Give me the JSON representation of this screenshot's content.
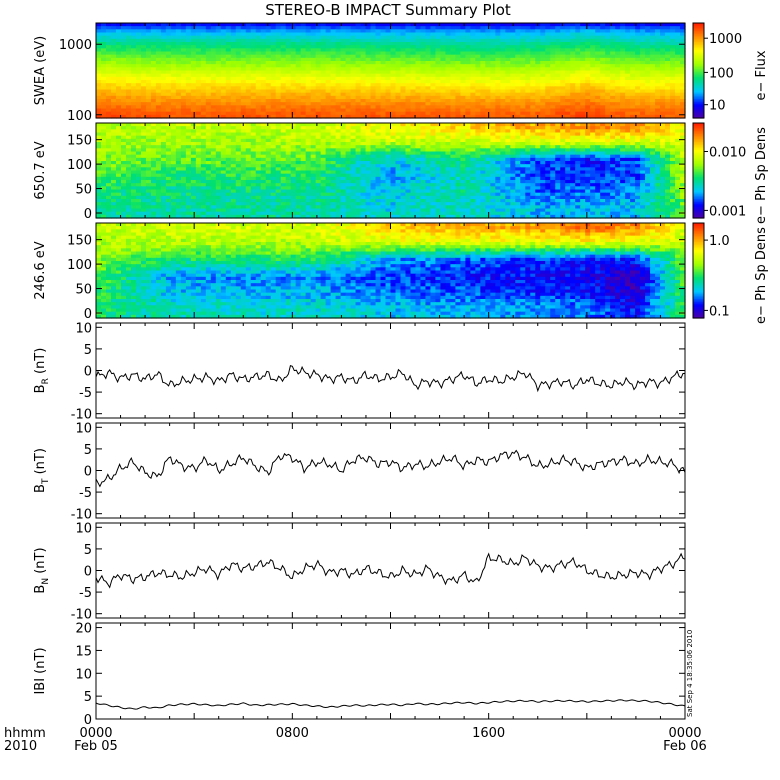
{
  "title": "STEREO-B IMPACT Summary Plot",
  "time_axis": {
    "label_line1": "hhmm",
    "label_line2": "2010",
    "ticks": [
      {
        "value": 0,
        "line1": "0000",
        "line2": "Feb 05"
      },
      {
        "value": 8,
        "line1": "0800",
        "line2": ""
      },
      {
        "value": 16,
        "line1": "1600",
        "line2": ""
      },
      {
        "value": 24,
        "line1": "0000",
        "line2": "Feb 06"
      }
    ],
    "range_hours": [
      0,
      24
    ]
  },
  "colorbars": [
    {
      "label": "e− Flux",
      "ticks": [
        "1000",
        "100",
        "10"
      ]
    },
    {
      "label": "e− Ph Sp Dens",
      "ticks": [
        "0.010",
        "0.001"
      ]
    },
    {
      "label": "e− Ph Sp Dens",
      "ticks": [
        "1.0",
        "0.1"
      ]
    }
  ],
  "spectrogram_panels": [
    {
      "ylabel": "SWEA (eV)",
      "yticks": [
        "1000",
        "100"
      ]
    },
    {
      "ylabel": "650.7 eV",
      "yticks": [
        "150",
        "100",
        "50",
        "0"
      ]
    },
    {
      "ylabel": "246.6 eV",
      "yticks": [
        "150",
        "100",
        "50",
        "0"
      ]
    }
  ],
  "timestamp": "Sat Sep  4 18:35:06 2010",
  "chart_data": [
    {
      "type": "heatmap",
      "name": "SWEA (eV)",
      "ylabel": "SWEA (eV)",
      "yscale": "log",
      "ylim": [
        90,
        2000
      ],
      "yticks": [
        1000,
        100
      ],
      "colorbar_label": "e− Flux",
      "colorbar_scale": "log",
      "colorbar_ticks": [
        1000,
        100,
        10
      ],
      "colors": [
        "#5000a0",
        "#0000ff",
        "#00c8ff",
        "#00e070",
        "#a0ff00",
        "#ffff00",
        "#ff9000",
        "#ff2000"
      ],
      "x_hours": [
        0,
        3,
        6,
        9,
        12,
        15,
        18,
        20,
        21,
        22,
        24
      ],
      "energy_rows_eV": [
        100,
        150,
        250,
        400,
        600,
        1000,
        1500,
        2000
      ],
      "z_level_fraction": [
        [
          0.95,
          0.88,
          0.78,
          0.66,
          0.55,
          0.42,
          0.28,
          0.12
        ],
        [
          0.93,
          0.86,
          0.76,
          0.64,
          0.53,
          0.41,
          0.27,
          0.12
        ],
        [
          0.93,
          0.86,
          0.76,
          0.64,
          0.53,
          0.41,
          0.27,
          0.12
        ],
        [
          0.93,
          0.86,
          0.76,
          0.64,
          0.53,
          0.41,
          0.27,
          0.12
        ],
        [
          0.93,
          0.86,
          0.75,
          0.63,
          0.52,
          0.4,
          0.26,
          0.12
        ],
        [
          0.92,
          0.85,
          0.74,
          0.62,
          0.51,
          0.39,
          0.26,
          0.11
        ],
        [
          0.92,
          0.85,
          0.74,
          0.62,
          0.51,
          0.39,
          0.26,
          0.11
        ],
        [
          0.96,
          0.89,
          0.79,
          0.67,
          0.56,
          0.43,
          0.3,
          0.13
        ],
        [
          0.93,
          0.86,
          0.76,
          0.64,
          0.53,
          0.41,
          0.27,
          0.12
        ],
        [
          0.92,
          0.85,
          0.74,
          0.62,
          0.51,
          0.39,
          0.26,
          0.11
        ],
        [
          0.92,
          0.85,
          0.74,
          0.62,
          0.51,
          0.39,
          0.26,
          0.11
        ]
      ]
    },
    {
      "type": "heatmap",
      "name": "650.7 eV pitch angle",
      "ylabel": "650.7 eV",
      "ylim": [
        0,
        180
      ],
      "yticks": [
        150,
        100,
        50,
        0
      ],
      "colorbar_label": "e− Ph Sp Dens",
      "colorbar_scale": "log",
      "colorbar_ticks": [
        0.01,
        0.001
      ],
      "colors": [
        "#5000a0",
        "#0000ff",
        "#00c8ff",
        "#00e070",
        "#a0ff00",
        "#ffff00",
        "#ff9000",
        "#ff2000"
      ],
      "x_hours": [
        0,
        3,
        6,
        9,
        12,
        15,
        18,
        20,
        22,
        24
      ],
      "angle_rows_deg": [
        10,
        40,
        75,
        110,
        145,
        175
      ],
      "z_level_fraction": [
        [
          0.4,
          0.43,
          0.5,
          0.56,
          0.58,
          0.6
        ],
        [
          0.38,
          0.4,
          0.44,
          0.5,
          0.58,
          0.62
        ],
        [
          0.38,
          0.4,
          0.45,
          0.52,
          0.58,
          0.62
        ],
        [
          0.38,
          0.4,
          0.44,
          0.5,
          0.6,
          0.63
        ],
        [
          0.32,
          0.3,
          0.26,
          0.3,
          0.62,
          0.72
        ],
        [
          0.36,
          0.38,
          0.36,
          0.42,
          0.63,
          0.76
        ],
        [
          0.28,
          0.22,
          0.18,
          0.2,
          0.65,
          0.82
        ],
        [
          0.28,
          0.22,
          0.18,
          0.16,
          0.66,
          0.86
        ],
        [
          0.3,
          0.24,
          0.18,
          0.18,
          0.65,
          0.86
        ],
        [
          0.5,
          0.56,
          0.6,
          0.62,
          0.64,
          0.7
        ]
      ]
    },
    {
      "type": "heatmap",
      "name": "246.6 eV pitch angle",
      "ylabel": "246.6 eV",
      "ylim": [
        0,
        180
      ],
      "yticks": [
        150,
        100,
        50,
        0
      ],
      "colorbar_label": "e− Ph Sp Dens",
      "colorbar_scale": "log",
      "colorbar_ticks": [
        1.0,
        0.1
      ],
      "colors": [
        "#5000a0",
        "#0000ff",
        "#00c8ff",
        "#00e070",
        "#a0ff00",
        "#ffff00",
        "#ff9000",
        "#ff2000"
      ],
      "x_hours": [
        0,
        3,
        6,
        9,
        12,
        15,
        18,
        20,
        22,
        24
      ],
      "angle_rows_deg": [
        10,
        40,
        75,
        110,
        145,
        175
      ],
      "z_level_fraction": [
        [
          0.44,
          0.46,
          0.5,
          0.56,
          0.6,
          0.62
        ],
        [
          0.36,
          0.3,
          0.26,
          0.44,
          0.6,
          0.64
        ],
        [
          0.34,
          0.28,
          0.24,
          0.44,
          0.6,
          0.64
        ],
        [
          0.34,
          0.28,
          0.24,
          0.44,
          0.62,
          0.66
        ],
        [
          0.3,
          0.22,
          0.18,
          0.26,
          0.66,
          0.78
        ],
        [
          0.28,
          0.2,
          0.16,
          0.22,
          0.68,
          0.8
        ],
        [
          0.26,
          0.18,
          0.14,
          0.18,
          0.68,
          0.84
        ],
        [
          0.24,
          0.16,
          0.12,
          0.16,
          0.7,
          0.9
        ],
        [
          0.14,
          0.06,
          0.04,
          0.16,
          0.68,
          0.86
        ],
        [
          0.46,
          0.48,
          0.5,
          0.52,
          0.62,
          0.66
        ]
      ]
    },
    {
      "type": "line",
      "name": "BR",
      "ylabel": "B_R (nT)",
      "ylim": [
        -11,
        11
      ],
      "yticks": [
        10,
        5,
        0,
        -5,
        -10
      ],
      "x_hours": [
        0,
        0.5,
        1,
        1.5,
        2,
        2.5,
        3,
        3.5,
        4,
        4.5,
        5,
        5.5,
        6,
        6.5,
        7,
        7.5,
        8,
        8.5,
        9,
        9.5,
        10,
        10.5,
        11,
        11.5,
        12,
        12.5,
        13,
        13.5,
        14,
        14.5,
        15,
        15.5,
        16,
        16.5,
        17,
        17.5,
        18,
        18.5,
        19,
        19.5,
        20,
        20.5,
        21,
        21.5,
        22,
        22.5,
        23,
        23.5,
        24
      ],
      "y": [
        -1.5,
        -0.5,
        -1.8,
        -1.0,
        -2.0,
        -0.8,
        -3.5,
        -2.5,
        -2.0,
        -1.5,
        -2.5,
        -1.0,
        -2.0,
        -1.5,
        -1.0,
        -2.5,
        0.5,
        -0.5,
        -1.0,
        -2.0,
        -1.5,
        -2.5,
        -1.0,
        -2.0,
        -1.5,
        -0.5,
        -3.5,
        -2.5,
        -3.0,
        -2.0,
        -1.0,
        -3.0,
        -2.0,
        -2.5,
        -1.5,
        -0.5,
        -3.5,
        -3.0,
        -2.5,
        -3.5,
        -2.0,
        -3.0,
        -3.5,
        -2.5,
        -3.5,
        -2.5,
        -3.0,
        -1.5,
        -0.5
      ]
    },
    {
      "type": "line",
      "name": "BT",
      "ylabel": "B_T (nT)",
      "ylim": [
        -11,
        11
      ],
      "yticks": [
        10,
        5,
        0,
        -5,
        -10
      ],
      "x_hours": [
        0,
        0.5,
        1,
        1.5,
        2,
        2.5,
        3,
        3.5,
        4,
        4.5,
        5,
        5.5,
        6,
        6.5,
        7,
        7.5,
        8,
        8.5,
        9,
        9.5,
        10,
        10.5,
        11,
        11.5,
        12,
        12.5,
        13,
        13.5,
        14,
        14.5,
        15,
        15.5,
        16,
        16.5,
        17,
        17.5,
        18,
        18.5,
        19,
        19.5,
        20,
        20.5,
        21,
        21.5,
        22,
        22.5,
        23,
        23.5,
        24
      ],
      "y": [
        -3.0,
        -2.0,
        0.5,
        2.0,
        -0.5,
        -1.5,
        3.0,
        1.0,
        0.5,
        2.5,
        0.0,
        1.5,
        3.0,
        1.0,
        -0.5,
        3.5,
        3.0,
        0.5,
        2.0,
        1.5,
        0.0,
        2.5,
        3.0,
        1.5,
        2.0,
        0.5,
        1.5,
        1.0,
        2.0,
        3.0,
        1.0,
        2.5,
        2.0,
        3.5,
        4.0,
        3.0,
        1.0,
        1.5,
        2.5,
        2.0,
        0.5,
        1.5,
        2.0,
        2.5,
        1.5,
        2.5,
        2.0,
        1.5,
        -0.5
      ]
    },
    {
      "type": "line",
      "name": "BN",
      "ylabel": "B_N (nT)",
      "ylim": [
        -11,
        11
      ],
      "yticks": [
        10,
        5,
        0,
        -5,
        -10
      ],
      "x_hours": [
        0,
        0.5,
        1,
        1.5,
        2,
        2.5,
        3,
        3.5,
        4,
        4.5,
        5,
        5.5,
        6,
        6.5,
        7,
        7.5,
        8,
        8.5,
        9,
        9.5,
        10,
        10.5,
        11,
        11.5,
        12,
        12.5,
        13,
        13.5,
        14,
        14.5,
        15,
        15.5,
        16,
        16.5,
        17,
        17.5,
        18,
        18.5,
        19,
        19.5,
        20,
        20.5,
        21,
        21.5,
        22,
        22.5,
        23,
        23.5,
        24
      ],
      "y": [
        -1.5,
        -3.0,
        -1.0,
        -2.0,
        -1.5,
        -0.5,
        -1.0,
        -1.5,
        -0.5,
        0.5,
        -1.0,
        1.5,
        0.5,
        1.0,
        2.0,
        0.5,
        -1.5,
        0.5,
        1.5,
        -0.5,
        0.0,
        -1.0,
        0.5,
        -0.5,
        -1.5,
        0.0,
        -1.0,
        0.5,
        -1.5,
        -2.5,
        -1.0,
        -3.0,
        3.0,
        2.5,
        1.5,
        3.0,
        1.0,
        0.5,
        1.5,
        2.0,
        0.0,
        -1.0,
        -1.5,
        -1.0,
        -0.5,
        -1.0,
        0.5,
        1.5,
        3.5
      ]
    },
    {
      "type": "line",
      "name": "|B|",
      "ylabel": "|B| (nT)",
      "ylim": [
        0,
        21
      ],
      "yticks": [
        20,
        15,
        10,
        5,
        0
      ],
      "x_hours": [
        0,
        0.5,
        1,
        1.5,
        2,
        2.5,
        3,
        3.5,
        4,
        4.5,
        5,
        5.5,
        6,
        6.5,
        7,
        7.5,
        8,
        8.5,
        9,
        9.5,
        10,
        10.5,
        11,
        11.5,
        12,
        12.5,
        13,
        13.5,
        14,
        14.5,
        15,
        15.5,
        16,
        16.5,
        17,
        17.5,
        18,
        18.5,
        19,
        19.5,
        20,
        20.5,
        21,
        21.5,
        22,
        22.5,
        23,
        23.5,
        24
      ],
      "y": [
        3.5,
        3.0,
        2.5,
        2.2,
        2.6,
        2.4,
        3.0,
        3.2,
        3.3,
        3.1,
        2.9,
        3.2,
        3.4,
        3.0,
        3.1,
        3.2,
        3.3,
        3.0,
        2.8,
        2.6,
        2.8,
        3.0,
        2.9,
        3.1,
        3.2,
        3.0,
        3.4,
        3.2,
        3.3,
        3.5,
        3.6,
        3.4,
        3.6,
        3.8,
        3.9,
        4.0,
        3.8,
        3.9,
        4.0,
        3.9,
        3.8,
        3.9,
        4.0,
        4.1,
        4.0,
        3.9,
        3.6,
        3.2,
        2.8
      ]
    }
  ]
}
